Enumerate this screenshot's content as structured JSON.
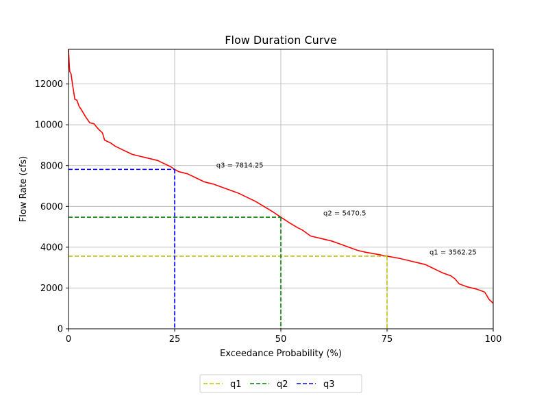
{
  "chart_data": {
    "type": "line",
    "title": "Flow Duration Curve",
    "xlabel": "Exceedance Probability (%)",
    "ylabel": "Flow Rate (cfs)",
    "xlim": [
      0,
      100
    ],
    "ylim": [
      0,
      13700
    ],
    "xticks": [
      0,
      25,
      50,
      75,
      100
    ],
    "xtick_labels": [
      "0",
      "25",
      "50",
      "75",
      "100"
    ],
    "yticks": [
      0,
      2000,
      4000,
      6000,
      8000,
      10000,
      12000
    ],
    "ytick_labels": [
      "0",
      "2000",
      "4000",
      "6000",
      "8000",
      "10000",
      "12000"
    ],
    "grid": true,
    "legend_position": "bottom-center",
    "curve": {
      "color": "#ff0000",
      "x": [
        0,
        0.2,
        0.3,
        0.6,
        1,
        1.5,
        2,
        2.5,
        3,
        4,
        5,
        6,
        7,
        8,
        8.5,
        9,
        10,
        11,
        12,
        13,
        14,
        15,
        16,
        17,
        18,
        19,
        20,
        21,
        22,
        23,
        24,
        25,
        26,
        27,
        28,
        30,
        32,
        34,
        36,
        38,
        40,
        42,
        44,
        46,
        48,
        50,
        52,
        54,
        55,
        56,
        57,
        58,
        60,
        62,
        64,
        66,
        68,
        70,
        72,
        75,
        78,
        80,
        82,
        84,
        86,
        88,
        90,
        91,
        92,
        94,
        96,
        98,
        99,
        100
      ],
      "y": [
        13700,
        12900,
        12600,
        12500,
        11900,
        11250,
        11200,
        10900,
        10750,
        10400,
        10100,
        10050,
        9800,
        9600,
        9250,
        9200,
        9100,
        8950,
        8850,
        8750,
        8650,
        8550,
        8500,
        8450,
        8400,
        8350,
        8300,
        8250,
        8150,
        8050,
        7950,
        7814,
        7700,
        7650,
        7600,
        7400,
        7200,
        7100,
        6950,
        6800,
        6650,
        6450,
        6250,
        6000,
        5750,
        5470,
        5200,
        4950,
        4850,
        4700,
        4550,
        4500,
        4400,
        4300,
        4150,
        4000,
        3850,
        3750,
        3680,
        3562,
        3450,
        3350,
        3250,
        3150,
        2950,
        2750,
        2600,
        2450,
        2200,
        2050,
        1950,
        1800,
        1450,
        1250
      ]
    },
    "series": [
      {
        "name": "q1",
        "value": 3562.25,
        "x": 75,
        "color": "#bfbf00",
        "annotation": "q1 = 3562.25",
        "ann_x": 85,
        "ann_y": 3650
      },
      {
        "name": "q2",
        "value": 5470.5,
        "x": 50,
        "color": "#008000",
        "annotation": "q2 = 5470.5",
        "ann_x": 60,
        "ann_y": 5560
      },
      {
        "name": "q3",
        "value": 7814.25,
        "x": 25,
        "color": "#0000ff",
        "annotation": "q3 = 7814.25",
        "ann_x": 34.8,
        "ann_y": 7900
      }
    ]
  }
}
